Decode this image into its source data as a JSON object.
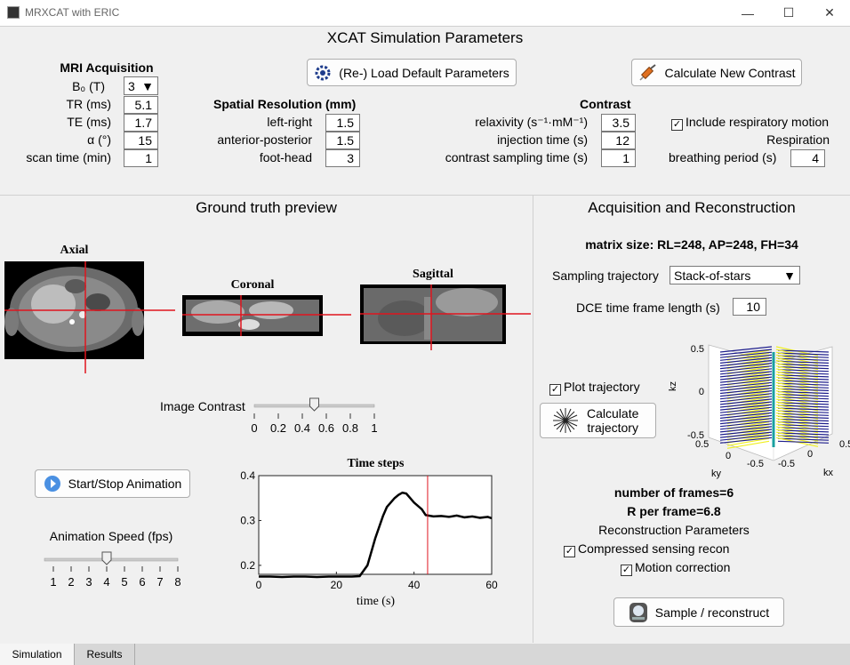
{
  "window": {
    "title": "MRXCAT with ERIC",
    "minimize": "—",
    "maximize": "☐",
    "close": "✕"
  },
  "sim_params": {
    "title": "XCAT Simulation Parameters",
    "load_default_label": "(Re-) Load Default Parameters",
    "calc_contrast_label": "Calculate New Contrast",
    "mri": {
      "heading": "MRI Acquisition",
      "b0_label": "B₀ (T)",
      "b0_value": "3",
      "tr_label": "TR (ms)",
      "tr_value": "5.1",
      "te_label": "TE (ms)",
      "te_value": "1.7",
      "alpha_label": "α (°)",
      "alpha_value": "15",
      "scantime_label": "scan time (min)",
      "scantime_value": "1"
    },
    "spatial": {
      "heading": "Spatial Resolution (mm)",
      "lr_label": "left-right",
      "lr_value": "1.5",
      "ap_label": "anterior-posterior",
      "ap_value": "1.5",
      "fh_label": "foot-head",
      "fh_value": "3"
    },
    "contrast": {
      "heading": "Contrast",
      "relaxivity_label": "relaxivity (s⁻¹·mM⁻¹)",
      "relaxivity_value": "3.5",
      "injection_label": "injection time (s)",
      "injection_value": "12",
      "sampling_label": "contrast sampling time (s)",
      "sampling_value": "1"
    },
    "respiration": {
      "include_label": "Include respiratory motion",
      "include_checked": true,
      "heading": "Respiration",
      "breathing_label": "breathing period (s)",
      "breathing_value": "4"
    }
  },
  "preview": {
    "title": "Ground truth preview",
    "axial_label": "Axial",
    "coronal_label": "Coronal",
    "sagittal_label": "Sagittal",
    "contrast_label": "Image Contrast",
    "contrast_ticks": [
      "0",
      "0.2",
      "0.4",
      "0.6",
      "0.8",
      "1"
    ],
    "contrast_value": 0.5,
    "start_stop_label": "Start/Stop Animation",
    "speed_label": "Animation Speed (fps)",
    "speed_ticks": [
      "1",
      "2",
      "3",
      "4",
      "5",
      "6",
      "7",
      "8"
    ],
    "speed_value": 4
  },
  "chart_data": [
    {
      "type": "line",
      "title": "Time steps",
      "xlabel": "time (s)",
      "ylabel": "",
      "xlim": [
        0,
        60
      ],
      "ylim": [
        0.18,
        0.4
      ],
      "xticks": [
        "0",
        "20",
        "40",
        "60"
      ],
      "yticks": [
        "0.2",
        "0.3",
        "0.4"
      ],
      "series": [
        {
          "x": [
            0,
            3,
            6,
            9,
            12,
            15,
            18,
            21,
            24,
            26,
            28,
            30,
            32,
            33,
            35,
            36,
            37,
            38,
            39,
            40,
            42,
            43,
            45,
            47,
            49,
            51,
            53,
            55,
            57,
            59,
            60
          ],
          "values": [
            0.175,
            0.175,
            0.174,
            0.175,
            0.175,
            0.174,
            0.175,
            0.175,
            0.175,
            0.176,
            0.2,
            0.26,
            0.31,
            0.33,
            0.35,
            0.357,
            0.362,
            0.36,
            0.35,
            0.34,
            0.325,
            0.312,
            0.309,
            0.31,
            0.308,
            0.311,
            0.307,
            0.309,
            0.306,
            0.308,
            0.305
          ]
        }
      ],
      "marker_line_x": 43.5
    },
    {
      "type": "scatter",
      "title": "",
      "axis_labels": {
        "kz": "kz",
        "ky": "ky",
        "kx": "kx"
      },
      "zticks": [
        "0.5",
        "0",
        "-0.5"
      ],
      "yticks": [
        "0.5",
        "0",
        "-0.5"
      ],
      "xticks": [
        "-0.5",
        "0",
        "0.5"
      ]
    }
  ],
  "acq": {
    "title": "Acquisition and Reconstruction",
    "matrix_size": "matrix size: RL=248, AP=248, FH=34",
    "trajectory_label": "Sampling trajectory",
    "trajectory_value": "Stack-of-stars",
    "frame_length_label": "DCE time frame length (s)",
    "frame_length_value": "10",
    "plot_trajectory_label": "Plot trajectory",
    "plot_trajectory_checked": true,
    "calc_trajectory_line1": "Calculate",
    "calc_trajectory_line2": "trajectory",
    "num_frames": "number of frames=6",
    "r_per_frame": "R per frame=6.8",
    "recon_heading": "Reconstruction Parameters",
    "cs_label": "Compressed sensing recon",
    "cs_checked": true,
    "motion_label": "Motion correction",
    "motion_checked": true,
    "sample_label": "Sample / reconstruct"
  },
  "tabs": [
    {
      "label": "Simulation"
    },
    {
      "label": "Results"
    }
  ],
  "colors": {
    "crosshair": "#e0141e",
    "traj_yellow": "#f0f020",
    "traj_navy": "#1e1e8c",
    "traj_teal": "#1aa0a0"
  }
}
